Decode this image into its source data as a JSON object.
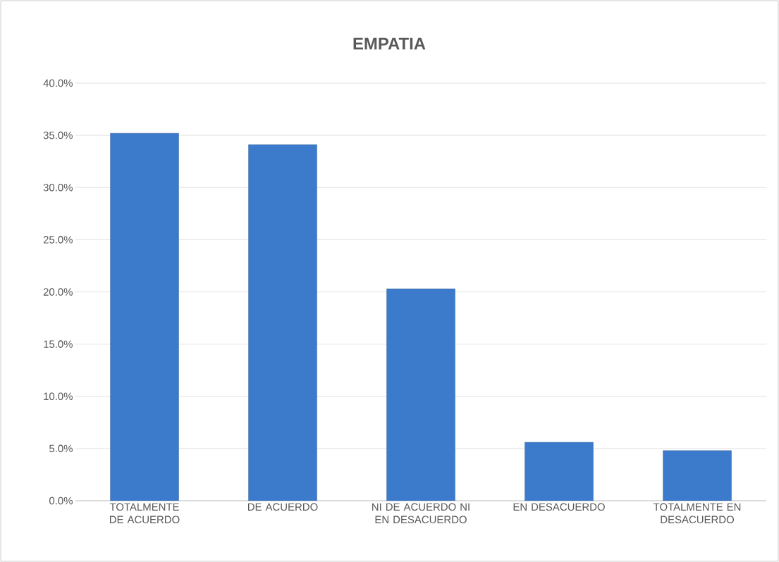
{
  "chart_data": {
    "type": "bar",
    "title": "EMPATIA",
    "categories": [
      "TOTALMENTE DE ACUERDO",
      "DE ACUERDO",
      "NI DE ACUERDO NI EN DESACUERDO",
      "EN DESACUERDO",
      "TOTALMENTE EN DESACUERDO"
    ],
    "values": [
      35.2,
      34.1,
      20.3,
      5.6,
      4.8
    ],
    "color": "#3c7bcb",
    "ylim": [
      0,
      40
    ],
    "yticks": [
      {
        "value": 0,
        "label": "0.0%"
      },
      {
        "value": 5,
        "label": "5.0%"
      },
      {
        "value": 10,
        "label": "10.0%"
      },
      {
        "value": 15,
        "label": "15.0%"
      },
      {
        "value": 20,
        "label": "20.0%"
      },
      {
        "value": 25,
        "label": "25.0%"
      },
      {
        "value": 30,
        "label": "30.0%"
      },
      {
        "value": 35,
        "label": "35.0%"
      },
      {
        "value": 40,
        "label": "40.0%"
      }
    ],
    "grid": "y"
  }
}
